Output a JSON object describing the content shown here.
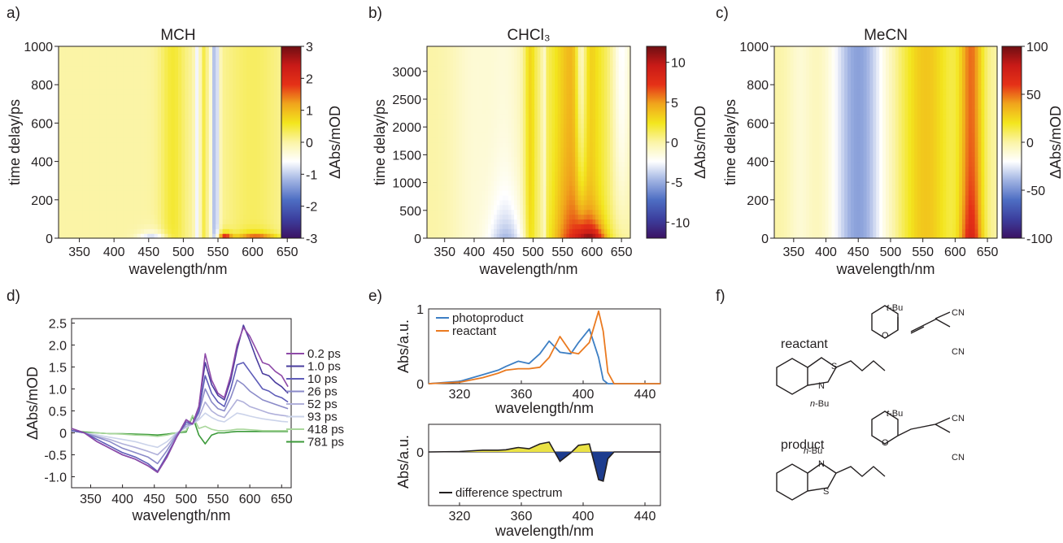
{
  "colors": {
    "diverging_map": [
      "#3b1263",
      "#3c3f9e",
      "#4e6ec3",
      "#9fb2e2",
      "#ffffff",
      "#fbf4a6",
      "#f3e61d",
      "#f0a51c",
      "#e53117",
      "#c91a17",
      "#6e0e12"
    ],
    "photoproduct": "#3d7fc4",
    "reactant": "#ea7a20",
    "positive_fill": "#eae244",
    "negative_fill": "#1d3c8e",
    "reactant_label": "#ea7a20",
    "product_label": "#4b78c0",
    "sulfur": "#9e9a1e",
    "nitrogen": "#2439a6",
    "oxygen": "#d22b2b"
  },
  "panels": {
    "a": "a)",
    "b": "b)",
    "c": "c)",
    "d": "d)",
    "e": "e)",
    "f": "f)"
  },
  "chart_data": [
    {
      "panel": "a",
      "type": "heatmap",
      "title": "MCH",
      "xlabel": "wavelength/nm",
      "ylabel": "time delay/ps",
      "xlim": [
        320,
        665
      ],
      "ylim": [
        0,
        1000
      ],
      "x_ticks": [
        "350",
        "400",
        "450",
        "500",
        "550",
        "600",
        "650"
      ],
      "y_ticks": [
        "0",
        "200",
        "400",
        "600",
        "800",
        "1000"
      ],
      "colorbar": {
        "label": "ΔAbs/mOD",
        "range": [
          -3,
          3
        ],
        "ticks": [
          "3",
          "2",
          "1",
          "0",
          "-1",
          "-2",
          "-3"
        ]
      },
      "features": [
        {
          "wavelength": 455,
          "delay_max": 40,
          "value": -1.2
        },
        {
          "wavelength": 490,
          "delay_max": 1000,
          "value": 0.6
        },
        {
          "wavelength": 522,
          "delay_max": 1000,
          "value": -0.8
        },
        {
          "wavelength": 545,
          "delay_max": 1000,
          "value": -1.2
        },
        {
          "wavelength": 560,
          "delay_max": 30,
          "value": 3.0
        },
        {
          "wavelength": 600,
          "delay_max": 40,
          "value": 2.0
        }
      ]
    },
    {
      "panel": "b",
      "type": "heatmap",
      "title": "CHCl₃",
      "xlabel": "wavelength/nm",
      "ylabel": "time delay/ps",
      "xlim": [
        320,
        665
      ],
      "ylim": [
        0,
        3450
      ],
      "x_ticks": [
        "350",
        "400",
        "450",
        "500",
        "550",
        "600",
        "650"
      ],
      "y_ticks": [
        "0",
        "500",
        "1000",
        "1500",
        "2000",
        "2500",
        "3000"
      ],
      "colorbar": {
        "label": "ΔAbs/mOD",
        "range": [
          -12,
          12
        ],
        "ticks": [
          "10",
          "5",
          "0",
          "-5",
          "-10"
        ]
      },
      "features": [
        {
          "wavelength": 450,
          "delay_max": 1000,
          "value": -5
        },
        {
          "wavelength": 518,
          "delay_max": 3450,
          "value": -2
        },
        {
          "wavelength": 560,
          "delay_max": 3450,
          "value": 4
        },
        {
          "wavelength": 580,
          "delay_max": 3450,
          "value": -3
        },
        {
          "wavelength": 600,
          "delay_max": 300,
          "value": 10
        }
      ]
    },
    {
      "panel": "c",
      "type": "heatmap",
      "title": "MeCN",
      "xlabel": "wavelength/nm",
      "ylabel": "time delay/ps",
      "xlim": [
        320,
        665
      ],
      "ylim": [
        0,
        1000
      ],
      "x_ticks": [
        "350",
        "400",
        "450",
        "500",
        "550",
        "600",
        "650"
      ],
      "y_ticks": [
        "0",
        "200",
        "400",
        "600",
        "800",
        "1000"
      ],
      "colorbar": {
        "label": "ΔAbs/mOD",
        "range": [
          -100,
          100
        ],
        "ticks": [
          "100",
          "50",
          "0",
          "-50",
          "-100"
        ]
      },
      "features": [
        {
          "wavelength": 450,
          "delay_max": 1000,
          "value": -55
        },
        {
          "wavelength": 560,
          "delay_max": 1000,
          "value": 30
        },
        {
          "wavelength": 625,
          "delay_max": 1000,
          "value": 85
        }
      ]
    },
    {
      "panel": "d",
      "type": "line",
      "xlabel": "wavelength/nm",
      "ylabel": "ΔAbs/mOD",
      "xlim": [
        320,
        665
      ],
      "ylim": [
        -1.25,
        2.6
      ],
      "x_ticks": [
        "350",
        "400",
        "450",
        "500",
        "550",
        "600",
        "650"
      ],
      "y_ticks": [
        "2.5",
        "2.0",
        "1.5",
        "1.0",
        "0.5",
        "0",
        "-0.5",
        "-1.0"
      ],
      "x": [
        320,
        340,
        360,
        380,
        400,
        420,
        440,
        455,
        470,
        485,
        500,
        510,
        520,
        530,
        540,
        550,
        560,
        570,
        580,
        590,
        600,
        610,
        620,
        630,
        640,
        650,
        660
      ],
      "series": [
        {
          "name": "0.2 ps",
          "color": "#8e4aa8",
          "values": [
            0.1,
            0.0,
            -0.2,
            -0.35,
            -0.5,
            -0.6,
            -0.75,
            -0.9,
            -0.55,
            -0.1,
            0.3,
            0.2,
            0.6,
            1.8,
            1.2,
            0.9,
            0.8,
            1.3,
            2.0,
            2.4,
            2.2,
            1.9,
            1.6,
            1.55,
            1.4,
            1.3,
            1.05
          ]
        },
        {
          "name": "1.0 ps",
          "color": "#4a3c9e",
          "values": [
            0.1,
            0.0,
            -0.2,
            -0.35,
            -0.5,
            -0.6,
            -0.75,
            -0.9,
            -0.55,
            -0.1,
            0.3,
            0.2,
            0.6,
            1.6,
            1.1,
            0.85,
            0.75,
            1.2,
            1.9,
            2.45,
            2.1,
            1.7,
            1.35,
            1.3,
            1.15,
            1.05,
            0.9
          ]
        },
        {
          "name": "10 ps",
          "color": "#5e5cb8",
          "values": [
            0.05,
            0.0,
            -0.15,
            -0.3,
            -0.45,
            -0.55,
            -0.7,
            -0.88,
            -0.5,
            -0.1,
            0.25,
            0.2,
            0.5,
            1.3,
            0.9,
            0.7,
            0.6,
            1.0,
            1.55,
            1.6,
            1.4,
            1.2,
            1.0,
            0.95,
            0.85,
            0.8,
            0.7
          ]
        },
        {
          "name": "26 ps",
          "color": "#8a8ac8",
          "values": [
            0.05,
            0.0,
            -0.1,
            -0.2,
            -0.35,
            -0.45,
            -0.55,
            -0.7,
            -0.4,
            -0.05,
            0.2,
            0.2,
            0.45,
            1.0,
            0.7,
            0.55,
            0.5,
            0.8,
            1.2,
            1.1,
            0.95,
            0.85,
            0.75,
            0.7,
            0.65,
            0.6,
            0.55
          ]
        },
        {
          "name": "52 ps",
          "color": "#b0b0da",
          "values": [
            0.05,
            0.0,
            -0.08,
            -0.15,
            -0.25,
            -0.33,
            -0.42,
            -0.5,
            -0.3,
            -0.02,
            0.15,
            0.2,
            0.35,
            0.7,
            0.5,
            0.4,
            0.35,
            0.55,
            0.75,
            0.7,
            0.6,
            0.55,
            0.5,
            0.45,
            0.42,
            0.4,
            0.38
          ]
        },
        {
          "name": "93 ps",
          "color": "#cbd3ea",
          "values": [
            0.05,
            0.0,
            -0.05,
            -0.1,
            -0.15,
            -0.2,
            -0.28,
            -0.33,
            -0.2,
            0.0,
            0.12,
            0.2,
            0.3,
            0.45,
            0.35,
            0.28,
            0.25,
            0.35,
            0.45,
            0.42,
            0.38,
            0.35,
            0.32,
            0.3,
            0.28,
            0.26,
            0.25
          ]
        },
        {
          "name": "418 ps",
          "color": "#a8d69a",
          "values": [
            0.05,
            0.0,
            0.0,
            -0.02,
            -0.03,
            -0.05,
            -0.06,
            -0.08,
            -0.05,
            0.0,
            0.05,
            0.4,
            0.1,
            0.15,
            0.08,
            0.05,
            0.05,
            0.06,
            0.08,
            0.08,
            0.07,
            0.06,
            0.05,
            0.05,
            0.05,
            0.05,
            0.05
          ]
        },
        {
          "name": "781 ps",
          "color": "#3c9a3a",
          "values": [
            0.05,
            0.02,
            0.0,
            -0.02,
            -0.02,
            -0.03,
            -0.04,
            -0.05,
            -0.03,
            0.0,
            0.02,
            0.38,
            -0.05,
            -0.25,
            -0.05,
            0.0,
            0.0,
            0.02,
            0.03,
            0.03,
            0.03,
            0.03,
            0.03,
            0.03,
            0.03,
            0.03,
            0.03
          ]
        }
      ]
    },
    {
      "panel": "e-top",
      "type": "line",
      "xlabel": "wavelength/nm",
      "ylabel": "Abs/a.u.",
      "xlim": [
        300,
        450
      ],
      "ylim": [
        0,
        1
      ],
      "x_ticks": [
        "320",
        "360",
        "400",
        "440"
      ],
      "y_ticks": [
        "1",
        "0.5",
        "0"
      ],
      "x": [
        300,
        320,
        335,
        345,
        350,
        358,
        365,
        372,
        378,
        385,
        392,
        397,
        404,
        410,
        413,
        416,
        420,
        430,
        450
      ],
      "series": [
        {
          "name": "photoproduct",
          "values": [
            0.0,
            0.03,
            0.12,
            0.18,
            0.23,
            0.3,
            0.27,
            0.4,
            0.57,
            0.42,
            0.4,
            0.55,
            0.73,
            0.35,
            0.05,
            0.0,
            0.0,
            0.0,
            0.0
          ]
        },
        {
          "name": "reactant",
          "values": [
            0.0,
            0.02,
            0.08,
            0.14,
            0.18,
            0.2,
            0.2,
            0.22,
            0.35,
            0.63,
            0.42,
            0.4,
            0.55,
            0.97,
            0.7,
            0.15,
            0.0,
            0.0,
            0.0
          ]
        }
      ]
    },
    {
      "panel": "e-bottom",
      "type": "area",
      "xlabel": "wavelength/nm",
      "ylabel": "Abs/a.u.",
      "xlim": [
        300,
        450
      ],
      "x_ticks": [
        "320",
        "360",
        "400",
        "440"
      ],
      "y_ticks": [
        "0"
      ],
      "x": [
        300,
        320,
        335,
        345,
        350,
        358,
        365,
        372,
        378,
        385,
        392,
        397,
        404,
        410,
        413,
        416,
        420,
        430,
        450
      ],
      "series": [
        {
          "name": "difference spectrum",
          "values": [
            0.0,
            0.01,
            0.04,
            0.04,
            0.05,
            0.1,
            0.07,
            0.18,
            0.22,
            -0.21,
            -0.02,
            0.15,
            0.18,
            -0.62,
            -0.65,
            -0.15,
            0.0,
            0.0,
            0.0
          ]
        }
      ]
    }
  ],
  "molecules": {
    "reactant_label": "reactant",
    "product_label": "product",
    "tBu_prefix": "t",
    "tBu_suffix": "-Bu",
    "nBu_prefix": "n",
    "nBu_suffix": "-Bu",
    "cn": "CN",
    "s": "S",
    "n": "N",
    "o": "O"
  }
}
